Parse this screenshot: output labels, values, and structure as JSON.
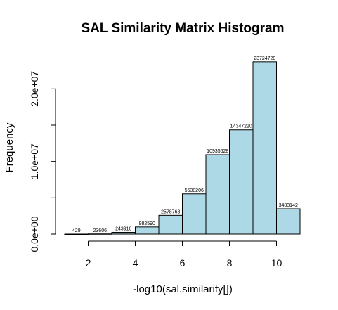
{
  "chart_data": {
    "type": "bar",
    "title": "SAL Similarity Matrix Histogram",
    "xlabel": "-log10(sal.similarity[])",
    "ylabel": "Frequency",
    "bins": [
      [
        1,
        2
      ],
      [
        2,
        3
      ],
      [
        3,
        4
      ],
      [
        4,
        5
      ],
      [
        5,
        6
      ],
      [
        6,
        7
      ],
      [
        7,
        8
      ],
      [
        8,
        9
      ],
      [
        9,
        10
      ],
      [
        10,
        11
      ]
    ],
    "values": [
      429,
      23606,
      243916,
      982590,
      2578768,
      5538206,
      10935628,
      14347220,
      23724720,
      3483142
    ],
    "data_labels": [
      "429",
      "23606",
      "243916",
      "982590",
      "2578768",
      "5538206",
      "10935628",
      "14347220",
      "23724720",
      "3483142"
    ],
    "xlim": [
      1,
      11
    ],
    "ylim": [
      0,
      24000000
    ],
    "x_ticks": [
      2,
      4,
      6,
      8,
      10
    ],
    "x_tick_labels": [
      "2",
      "4",
      "6",
      "8",
      "10"
    ],
    "y_ticks": [
      0,
      5000000,
      10000000,
      15000000,
      20000000
    ],
    "y_tick_labels": [
      "0.0e+00",
      "",
      "1.0e+07",
      "",
      "2.0e+07"
    ],
    "bar_color": "#add8e6",
    "grid": false
  }
}
